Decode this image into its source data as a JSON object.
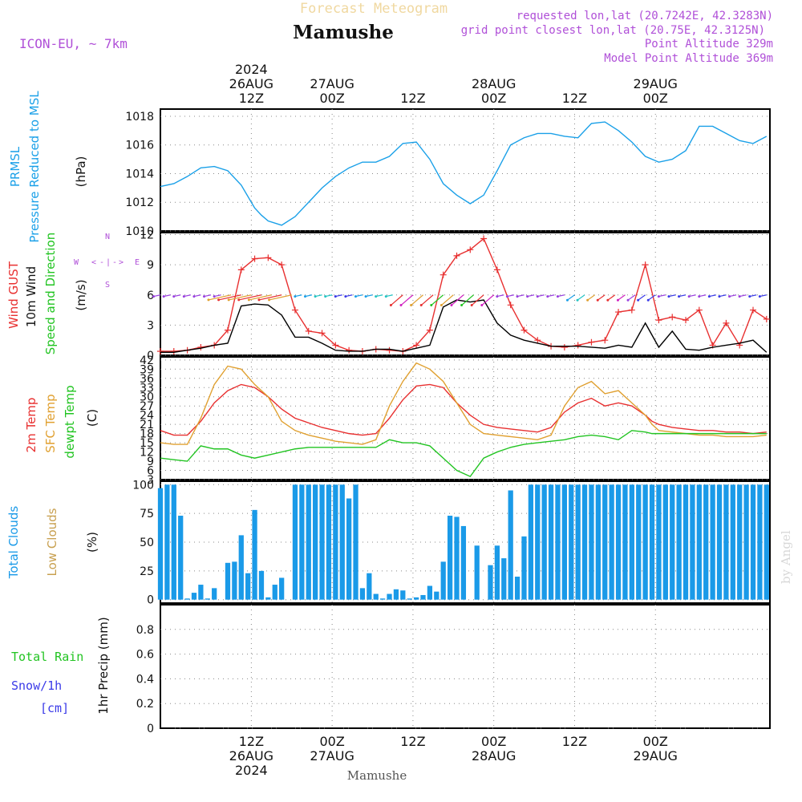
{
  "header": {
    "faint_title": "Forecast Meteogram",
    "location": "Mamushe",
    "model": "ICON-EU, ~ 7km",
    "requested": "requested lon,lat (20.7242E, 42.3283N)",
    "gridpoint": "grid point closest lon,lat (20.75E, 42.3125N)",
    "point_alt": "Point Altitude 329m",
    "model_alt": "Model Point Altitude 369m",
    "footer": "Mamushe",
    "credit": "by Angel"
  },
  "colors": {
    "pressure": "#1aa0e8",
    "gust": "#e83030",
    "wind": "#000000",
    "temp2m": "#e83030",
    "sfc": "#e0a030",
    "dewpt": "#22c422",
    "total_cloud": "#1a9ae8",
    "low_cloud": "#c8a050",
    "rain": "#22c422",
    "snow": "#3a3ae8",
    "purple": "#b050d8",
    "grid": "#888888"
  },
  "time_axis": {
    "top_ticks": [
      {
        "label": [
          "2024",
          "26AUG",
          "12Z"
        ]
      },
      {
        "label": [
          "27AUG",
          "00Z"
        ]
      },
      {
        "label": [
          "12Z"
        ]
      },
      {
        "label": [
          "28AUG",
          "00Z"
        ]
      },
      {
        "label": [
          "12Z"
        ]
      },
      {
        "label": [
          "29AUG",
          "00Z"
        ]
      }
    ],
    "bottom_ticks": [
      {
        "label": [
          "12Z",
          "26AUG",
          "2024"
        ]
      },
      {
        "label": [
          "00Z",
          "27AUG"
        ]
      },
      {
        "label": [
          "12Z"
        ]
      },
      {
        "label": [
          "00Z",
          "28AUG"
        ]
      },
      {
        "label": [
          "12Z"
        ]
      },
      {
        "label": [
          "00Z",
          "29AUG"
        ]
      }
    ]
  },
  "chart_data": [
    {
      "type": "line",
      "panel": "pressure",
      "ylabel_lines": [
        "PRMSL",
        "Pressure Reduced to MSL"
      ],
      "unit": "(hPa)",
      "ylim": [
        1010,
        1018.5
      ],
      "yticks": [
        1010,
        1012,
        1014,
        1016,
        1018
      ],
      "x_hours": [
        0,
        2,
        4,
        6,
        8,
        10,
        12,
        14,
        15,
        16,
        18,
        20,
        22,
        24,
        26,
        28,
        30,
        32,
        34,
        36,
        38,
        40,
        42,
        44,
        46,
        48,
        50,
        52,
        54,
        56,
        58,
        60,
        62,
        64,
        66,
        68,
        70,
        72,
        74,
        76,
        78,
        80,
        82,
        84,
        86,
        88,
        90
      ],
      "series": [
        {
          "name": "PRMSL",
          "values": [
            1013.1,
            1013.3,
            1013.8,
            1014.4,
            1014.5,
            1014.2,
            1013.2,
            1011.6,
            1011.1,
            1010.7,
            1010.4,
            1011.0,
            1012.0,
            1013.0,
            1013.8,
            1014.4,
            1014.8,
            1014.8,
            1015.2,
            1016.1,
            1016.2,
            1015.0,
            1013.3,
            1012.5,
            1011.9,
            1012.5,
            1014.2,
            1016.0,
            1016.5,
            1016.8,
            1016.8,
            1016.6,
            1016.5,
            1017.5,
            1017.6,
            1017.0,
            1016.2,
            1015.2,
            1014.8,
            1015.0,
            1015.6,
            1017.3,
            1017.3,
            1016.8,
            1016.3,
            1016.1,
            1016.6
          ]
        }
      ]
    },
    {
      "type": "line",
      "panel": "wind",
      "ylabel_lines": [
        "Wind GUST",
        "10m Wind",
        "Speed and Direction"
      ],
      "unit": "(m/s)",
      "compass": [
        "W",
        "<",
        "-",
        "|",
        "-",
        ">",
        "E",
        "N",
        "S"
      ],
      "ylim": [
        0,
        12.2
      ],
      "yticks": [
        0,
        3,
        6,
        9,
        12
      ],
      "x_hours": [
        0,
        2,
        4,
        6,
        8,
        10,
        12,
        14,
        16,
        18,
        20,
        22,
        24,
        26,
        28,
        30,
        32,
        34,
        36,
        38,
        40,
        42,
        44,
        46,
        48,
        50,
        52,
        54,
        56,
        58,
        60,
        62,
        64,
        66,
        68,
        70,
        72,
        74,
        76,
        78,
        80,
        82,
        84,
        86,
        88,
        90
      ],
      "series": [
        {
          "name": "Wind GUST",
          "values": [
            0.4,
            0.4,
            0.5,
            0.8,
            1.0,
            2.5,
            8.5,
            9.6,
            9.7,
            9.0,
            4.5,
            2.4,
            2.2,
            1.0,
            0.5,
            0.4,
            0.6,
            0.5,
            0.4,
            1.0,
            2.5,
            8.0,
            9.9,
            10.5,
            11.6,
            8.5,
            5.0,
            2.5,
            1.5,
            0.9,
            0.8,
            1.0,
            1.3,
            1.5,
            4.3,
            4.5,
            9.0,
            3.5,
            3.8,
            3.5,
            4.5,
            1.0,
            3.2,
            1.0,
            4.5,
            3.6
          ]
        },
        {
          "name": "10m Wind",
          "values": [
            0.3,
            0.3,
            0.5,
            0.7,
            1.0,
            1.2,
            4.9,
            5.1,
            5.0,
            4.0,
            1.8,
            1.8,
            1.2,
            0.5,
            0.4,
            0.4,
            0.6,
            0.6,
            0.4,
            0.7,
            1.0,
            4.8,
            5.5,
            5.3,
            5.5,
            3.2,
            2.0,
            1.5,
            1.2,
            0.9,
            0.9,
            0.9,
            0.8,
            0.7,
            1.0,
            0.8,
            3.2,
            0.8,
            2.4,
            0.6,
            0.5,
            0.8,
            1.0,
            1.2,
            1.5,
            0.3
          ]
        }
      ]
    },
    {
      "type": "line",
      "panel": "temperature",
      "ylabel_lines": [
        "2m Temp",
        "SFC Temp",
        "dewpt Temp"
      ],
      "unit": "(C)",
      "ylim": [
        3,
        43
      ],
      "yticks": [
        3,
        6,
        9,
        12,
        15,
        18,
        21,
        24,
        27,
        30,
        33,
        36,
        39,
        42
      ],
      "x_hours": [
        0,
        2,
        4,
        6,
        8,
        10,
        12,
        14,
        16,
        18,
        20,
        22,
        24,
        26,
        28,
        30,
        32,
        34,
        36,
        38,
        40,
        42,
        44,
        46,
        48,
        50,
        52,
        54,
        56,
        58,
        60,
        62,
        64,
        66,
        68,
        70,
        72,
        73,
        74,
        76,
        78,
        80,
        82,
        84,
        86,
        88,
        90
      ],
      "series": [
        {
          "name": "2m Temp",
          "values": [
            19,
            17.5,
            17.5,
            22,
            28,
            32,
            34,
            33,
            30,
            26,
            23,
            21.5,
            20,
            19,
            18,
            17.5,
            18,
            23,
            29,
            33.5,
            34,
            33,
            28,
            24,
            21,
            20,
            19.5,
            19,
            18.5,
            20,
            25,
            28,
            29.5,
            27,
            28,
            27,
            24,
            22,
            21,
            20,
            19.5,
            19,
            19,
            18.5,
            18.5,
            18,
            18.5
          ]
        },
        {
          "name": "SFC Temp",
          "values": [
            15,
            14.5,
            14.5,
            23,
            34,
            40,
            39,
            34,
            30,
            22,
            19,
            17.5,
            16.5,
            15.5,
            15,
            14.5,
            16,
            27,
            35,
            41,
            39,
            35,
            28,
            21,
            18,
            17.5,
            17,
            16.5,
            16,
            17.5,
            27,
            33,
            35,
            31,
            32,
            28,
            24,
            21,
            19,
            18.5,
            18,
            17.5,
            17.5,
            17,
            17,
            17,
            17.5
          ]
        },
        {
          "name": "dewpt Temp",
          "values": [
            10,
            9.5,
            9,
            14,
            13,
            13,
            11,
            10,
            11,
            12,
            13,
            13.5,
            13.5,
            13.5,
            13.5,
            13.5,
            13.5,
            16,
            15,
            15,
            14,
            10,
            6,
            4,
            10,
            12,
            13.5,
            14.5,
            15,
            15.5,
            16,
            17,
            17.5,
            17,
            16,
            19,
            18.5,
            18,
            18,
            18,
            18,
            18,
            18,
            18,
            18,
            18,
            18
          ]
        }
      ]
    },
    {
      "type": "bar",
      "panel": "clouds",
      "ylabel_lines": [
        "Total Clouds",
        "Low Clouds"
      ],
      "unit": "(%)",
      "ylim": [
        -3,
        103
      ],
      "yticks": [
        0,
        25,
        50,
        75,
        100
      ],
      "x_hours": [
        0,
        1,
        2,
        3,
        4,
        5,
        6,
        7,
        8,
        9,
        10,
        11,
        12,
        13,
        14,
        15,
        16,
        17,
        18,
        19,
        20,
        21,
        22,
        23,
        24,
        25,
        26,
        27,
        28,
        29,
        30,
        31,
        32,
        33,
        34,
        35,
        36,
        37,
        38,
        39,
        40,
        41,
        42,
        43,
        44,
        45,
        46,
        47,
        48,
        49,
        50,
        51,
        52,
        53,
        54,
        55,
        56,
        57,
        58,
        59,
        60,
        61,
        62,
        63,
        64,
        65,
        66,
        67,
        68,
        69,
        70,
        71,
        72,
        73,
        74,
        75,
        76,
        77,
        78,
        79,
        80,
        81,
        82,
        83,
        84,
        85,
        86,
        87,
        88,
        89,
        90
      ],
      "series": [
        {
          "name": "Total Clouds",
          "values": [
            97,
            100,
            100,
            73,
            1,
            6,
            13,
            1,
            10,
            0,
            32,
            33,
            56,
            23,
            78,
            25,
            2,
            13,
            19,
            0,
            100,
            100,
            100,
            100,
            100,
            100,
            100,
            100,
            88,
            100,
            10,
            23,
            5,
            1,
            5,
            9,
            8,
            1,
            2,
            4,
            12,
            7,
            33,
            73,
            72,
            64,
            0,
            47,
            0,
            30,
            47,
            36,
            95,
            20,
            55,
            100,
            100,
            100,
            100,
            100,
            100,
            100,
            100,
            100,
            100,
            100,
            100,
            100,
            100,
            100,
            100,
            100,
            100,
            100,
            100,
            100,
            100,
            100,
            100,
            100,
            100,
            100,
            100,
            100,
            100,
            100,
            100,
            100,
            100,
            100,
            100
          ]
        },
        {
          "name": "Low Clouds",
          "values": [
            0,
            0,
            0,
            0,
            0,
            0,
            0,
            0,
            0,
            0,
            0,
            0,
            0,
            0,
            0,
            0,
            0,
            0,
            0,
            0,
            0,
            0,
            0,
            0,
            0,
            0,
            0,
            0,
            0,
            0,
            0,
            0,
            0,
            0,
            0,
            0,
            0,
            0,
            0,
            0,
            0,
            0,
            0,
            0,
            0,
            0,
            0,
            0,
            0,
            0,
            0,
            0,
            0,
            0,
            0,
            0,
            0,
            0,
            0,
            0,
            0,
            0,
            0,
            0,
            0,
            0,
            0,
            0,
            0,
            0,
            0,
            0,
            0,
            0,
            0,
            0,
            0,
            0,
            0,
            0,
            0,
            0,
            0,
            0,
            0,
            0,
            0,
            0,
            0,
            0,
            0
          ]
        }
      ]
    },
    {
      "type": "bar",
      "panel": "precip",
      "ylabel_lines": [
        "1hr Precip (mm)"
      ],
      "legend_lines": [
        "Total Rain",
        "Snow/1h",
        "[cm]"
      ],
      "ylim": [
        0,
        1.0
      ],
      "yticks": [
        0,
        0.2,
        0.4,
        0.6,
        0.8
      ],
      "x_hours": [
        0,
        1,
        2,
        3,
        4,
        5,
        6,
        7,
        8,
        9,
        10,
        11,
        12,
        13,
        14,
        15,
        16,
        17,
        18,
        19,
        20,
        21,
        22,
        23,
        24,
        25,
        26,
        27,
        28,
        29,
        30,
        31,
        32,
        33,
        34,
        35,
        36,
        37,
        38,
        39,
        40,
        41,
        42,
        43,
        44,
        45,
        46,
        47,
        48,
        49,
        50,
        51,
        52,
        53,
        54,
        55,
        56,
        57,
        58,
        59,
        60,
        61,
        62,
        63,
        64,
        65,
        66,
        67,
        68,
        69,
        70,
        71,
        72,
        73,
        74,
        75,
        76,
        77,
        78,
        79,
        80,
        81,
        82,
        83,
        84,
        85,
        86,
        87,
        88,
        89,
        90
      ],
      "series": [
        {
          "name": "Total Rain",
          "values": [
            0,
            0,
            0,
            0,
            0,
            0,
            0,
            0,
            0,
            0,
            0,
            0,
            0,
            0,
            0,
            0,
            0,
            0,
            0,
            0,
            0,
            0,
            0,
            0,
            0,
            0,
            0,
            0,
            0,
            0,
            0,
            0,
            0,
            0,
            0,
            0,
            0,
            0,
            0,
            0,
            0,
            0,
            0,
            0,
            0,
            0,
            0,
            0,
            0,
            0,
            0,
            0,
            0,
            0,
            0,
            0,
            0,
            0,
            0,
            0,
            0,
            0,
            0,
            0,
            0,
            0,
            0,
            0,
            0,
            0,
            0,
            0,
            0,
            0,
            0,
            0,
            0,
            0,
            0,
            0,
            0,
            0,
            0,
            0,
            0,
            0,
            0,
            0,
            0,
            0,
            0
          ]
        }
      ]
    }
  ]
}
